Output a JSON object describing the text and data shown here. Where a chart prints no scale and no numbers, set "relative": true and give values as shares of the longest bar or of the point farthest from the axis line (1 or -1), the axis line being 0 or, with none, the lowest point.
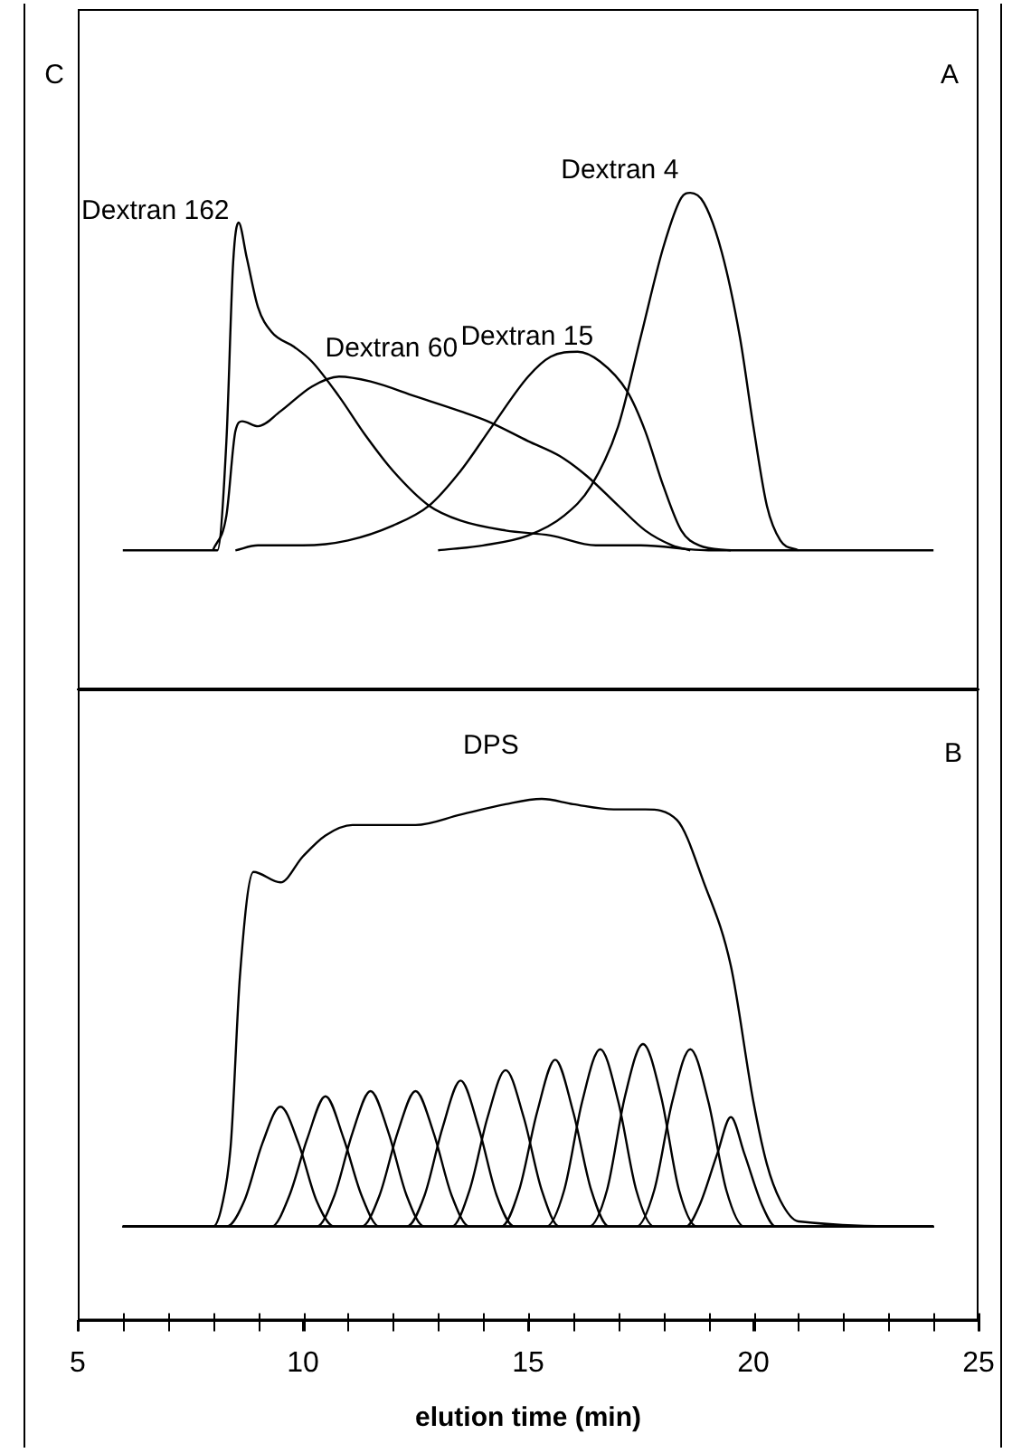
{
  "chart_data": [
    {
      "type": "line",
      "relative": true,
      "xlim": [
        5,
        25
      ],
      "tick_labels": false,
      "annotations": [
        "C",
        "A"
      ],
      "series": [
        {
          "name": "Dextran 162",
          "color": "#000000",
          "x": [
            6,
            8.1,
            8.3,
            8.45,
            8.57,
            8.75,
            9,
            9.3,
            9.8,
            10.2,
            10.8,
            11.4,
            12,
            12.8,
            13.5,
            14.5,
            15.5,
            16.5,
            17.5,
            19,
            24
          ],
          "values": [
            0.28,
            0.28,
            0.5,
            0.86,
            0.94,
            0.87,
            0.77,
            0.72,
            0.69,
            0.66,
            0.59,
            0.51,
            0.44,
            0.37,
            0.34,
            0.32,
            0.31,
            0.29,
            0.29,
            0.28,
            0.28
          ]
        },
        {
          "name": "Dextran 60",
          "color": "#000000",
          "x": [
            8,
            8.3,
            8.5,
            8.65,
            9,
            9.5,
            10.2,
            10.8,
            11.5,
            12.5,
            13.5,
            14.1,
            15,
            15.7,
            16.3,
            17,
            17.6,
            18.2,
            18.6
          ],
          "values": [
            0.28,
            0.35,
            0.52,
            0.54,
            0.53,
            0.56,
            0.61,
            0.63,
            0.62,
            0.59,
            0.56,
            0.54,
            0.5,
            0.47,
            0.43,
            0.37,
            0.32,
            0.29,
            0.28
          ]
        },
        {
          "name": "Dextran 15",
          "color": "#000000",
          "x": [
            8.5,
            9,
            10,
            11,
            12,
            12.8,
            13.5,
            14.2,
            15,
            15.5,
            16.1,
            16.6,
            17.2,
            17.6,
            18,
            18.4,
            18.8,
            19.5
          ],
          "values": [
            0.28,
            0.29,
            0.29,
            0.3,
            0.33,
            0.37,
            0.44,
            0.53,
            0.63,
            0.67,
            0.68,
            0.66,
            0.6,
            0.52,
            0.41,
            0.32,
            0.29,
            0.28
          ]
        },
        {
          "name": "Dextran 4",
          "color": "#000000",
          "x": [
            13,
            14,
            15,
            15.8,
            16.4,
            17,
            17.5,
            18,
            18.4,
            18.6,
            18.9,
            19.3,
            19.7,
            20,
            20.3,
            20.6,
            21
          ],
          "values": [
            0.28,
            0.29,
            0.31,
            0.35,
            0.41,
            0.53,
            0.71,
            0.89,
            0.99,
            1.0,
            0.98,
            0.88,
            0.71,
            0.53,
            0.37,
            0.3,
            0.28
          ]
        }
      ]
    },
    {
      "type": "line",
      "relative": true,
      "xlim": [
        5,
        25
      ],
      "tick_labels": "x",
      "xlabel": "elution time (min)",
      "annotations": [
        "B"
      ],
      "xticks": [
        5,
        {
          "value": 6,
          "label": null
        },
        {
          "value": 7,
          "label": null
        },
        {
          "value": 8,
          "label": null
        },
        {
          "value": 9,
          "label": null
        },
        10,
        {
          "value": 11,
          "label": null
        },
        {
          "value": 12,
          "label": null
        },
        {
          "value": 13,
          "label": null
        },
        {
          "value": 14,
          "label": null
        },
        15,
        {
          "value": 16,
          "label": null
        },
        {
          "value": 17,
          "label": null
        },
        {
          "value": 18,
          "label": null
        },
        {
          "value": 19,
          "label": null
        },
        20,
        {
          "value": 21,
          "label": null
        },
        {
          "value": 22,
          "label": null
        },
        {
          "value": 23,
          "label": null
        },
        {
          "value": 24,
          "label": null
        },
        25
      ],
      "series": [
        {
          "name": "DPS",
          "color": "#000000",
          "x": [
            6,
            8,
            8.2,
            8.4,
            8.6,
            8.9,
            9.5,
            10,
            10.5,
            11.1,
            12.5,
            13.5,
            14.5,
            15.3,
            16,
            16.9,
            17.6,
            18.3,
            18.9,
            19.5,
            20,
            20.3,
            20.6,
            21,
            24
          ],
          "values": [
            0.18,
            0.18,
            0.22,
            0.34,
            0.66,
            0.86,
            0.84,
            0.89,
            0.93,
            0.95,
            0.95,
            0.97,
            0.99,
            1.0,
            0.99,
            0.98,
            0.98,
            0.96,
            0.84,
            0.68,
            0.42,
            0.3,
            0.23,
            0.19,
            0.18
          ]
        },
        {
          "color": "#000000",
          "x": [
            6,
            8.3,
            8.7,
            9.1,
            9.5,
            9.9,
            10.3,
            10.7,
            24
          ],
          "values": [
            0.18,
            0.18,
            0.23,
            0.34,
            0.41,
            0.34,
            0.23,
            0.18,
            0.18
          ]
        },
        {
          "color": "#000000",
          "x": [
            6,
            9.3,
            9.7,
            10.1,
            10.5,
            10.9,
            11.3,
            11.7,
            24
          ],
          "values": [
            0.18,
            0.18,
            0.24,
            0.35,
            0.43,
            0.35,
            0.24,
            0.18,
            0.18
          ]
        },
        {
          "color": "#000000",
          "x": [
            6,
            10.3,
            10.7,
            11.1,
            11.5,
            11.9,
            12.3,
            12.7,
            24
          ],
          "values": [
            0.18,
            0.18,
            0.24,
            0.36,
            0.44,
            0.36,
            0.24,
            0.18,
            0.18
          ]
        },
        {
          "color": "#000000",
          "x": [
            6,
            11.3,
            11.7,
            12.1,
            12.5,
            12.9,
            13.3,
            13.7,
            24
          ],
          "values": [
            0.18,
            0.18,
            0.24,
            0.36,
            0.44,
            0.36,
            0.24,
            0.18,
            0.18
          ]
        },
        {
          "color": "#000000",
          "x": [
            6,
            12.3,
            12.7,
            13.1,
            13.5,
            13.9,
            14.3,
            14.7,
            24
          ],
          "values": [
            0.18,
            0.18,
            0.24,
            0.37,
            0.46,
            0.37,
            0.24,
            0.18,
            0.18
          ]
        },
        {
          "color": "#000000",
          "x": [
            6,
            13.3,
            13.7,
            14.1,
            14.5,
            14.9,
            15.3,
            15.7,
            24
          ],
          "values": [
            0.18,
            0.18,
            0.25,
            0.39,
            0.48,
            0.39,
            0.25,
            0.18,
            0.18
          ]
        },
        {
          "color": "#000000",
          "x": [
            6,
            14.4,
            14.8,
            15.2,
            15.6,
            16,
            16.4,
            16.8,
            24
          ],
          "values": [
            0.18,
            0.18,
            0.25,
            0.4,
            0.5,
            0.4,
            0.25,
            0.18,
            0.18
          ]
        },
        {
          "color": "#000000",
          "x": [
            6,
            15.4,
            15.8,
            16.2,
            16.6,
            17,
            17.4,
            17.8,
            24
          ],
          "values": [
            0.18,
            0.18,
            0.25,
            0.42,
            0.52,
            0.42,
            0.25,
            0.18,
            0.18
          ]
        },
        {
          "color": "#000000",
          "x": [
            6,
            16.35,
            16.75,
            17.15,
            17.55,
            17.95,
            18.35,
            18.75,
            24
          ],
          "values": [
            0.18,
            0.18,
            0.25,
            0.43,
            0.53,
            0.43,
            0.25,
            0.18,
            0.18
          ]
        },
        {
          "color": "#000000",
          "x": [
            6,
            17.4,
            17.8,
            18.2,
            18.6,
            19,
            19.4,
            19.8,
            24
          ],
          "values": [
            0.18,
            0.18,
            0.25,
            0.42,
            0.52,
            0.42,
            0.25,
            0.18,
            0.18
          ]
        },
        {
          "color": "#000000",
          "x": [
            6,
            18.5,
            18.8,
            19.2,
            19.5,
            19.8,
            20.2,
            20.5,
            24
          ],
          "values": [
            0.18,
            0.18,
            0.22,
            0.32,
            0.39,
            0.32,
            0.22,
            0.18,
            0.18
          ]
        }
      ]
    }
  ]
}
